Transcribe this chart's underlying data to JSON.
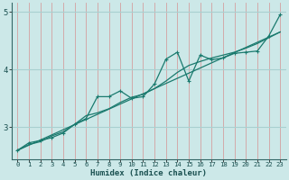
{
  "xlabel": "Humidex (Indice chaleur)",
  "background_color": "#cce8e8",
  "line_color": "#1a7a6e",
  "vgrid_color": "#d4a0a0",
  "hgrid_color": "#a8d0d0",
  "xlim": [
    -0.5,
    23.5
  ],
  "ylim": [
    2.45,
    5.15
  ],
  "yticks": [
    3,
    4,
    5
  ],
  "xticks": [
    0,
    1,
    2,
    3,
    4,
    5,
    6,
    7,
    8,
    9,
    10,
    11,
    12,
    13,
    14,
    15,
    16,
    17,
    18,
    19,
    20,
    21,
    22,
    23
  ],
  "series1_x": [
    0,
    1,
    2,
    3,
    4,
    5,
    6,
    7,
    8,
    9,
    10,
    11,
    12,
    13,
    14,
    15,
    16,
    17,
    18,
    19,
    20,
    21,
    22,
    23
  ],
  "series1_y": [
    2.6,
    2.73,
    2.77,
    2.82,
    2.9,
    3.05,
    3.15,
    3.53,
    3.53,
    3.63,
    3.5,
    3.53,
    3.75,
    4.18,
    4.3,
    3.8,
    4.25,
    4.17,
    4.2,
    4.28,
    4.3,
    4.32,
    4.58,
    4.95
  ],
  "series2_x": [
    0,
    1,
    2,
    3,
    4,
    5,
    6,
    7,
    8,
    9,
    10,
    11,
    12,
    13,
    14,
    15,
    16,
    17,
    18,
    19,
    20,
    21,
    22,
    23
  ],
  "series2_y": [
    2.6,
    2.7,
    2.75,
    2.85,
    2.92,
    3.05,
    3.2,
    3.25,
    3.32,
    3.43,
    3.52,
    3.57,
    3.67,
    3.8,
    3.95,
    4.07,
    4.14,
    4.2,
    4.25,
    4.3,
    4.37,
    4.45,
    4.55,
    4.65
  ],
  "series3_x": [
    0,
    23
  ],
  "series3_y": [
    2.6,
    4.65
  ]
}
